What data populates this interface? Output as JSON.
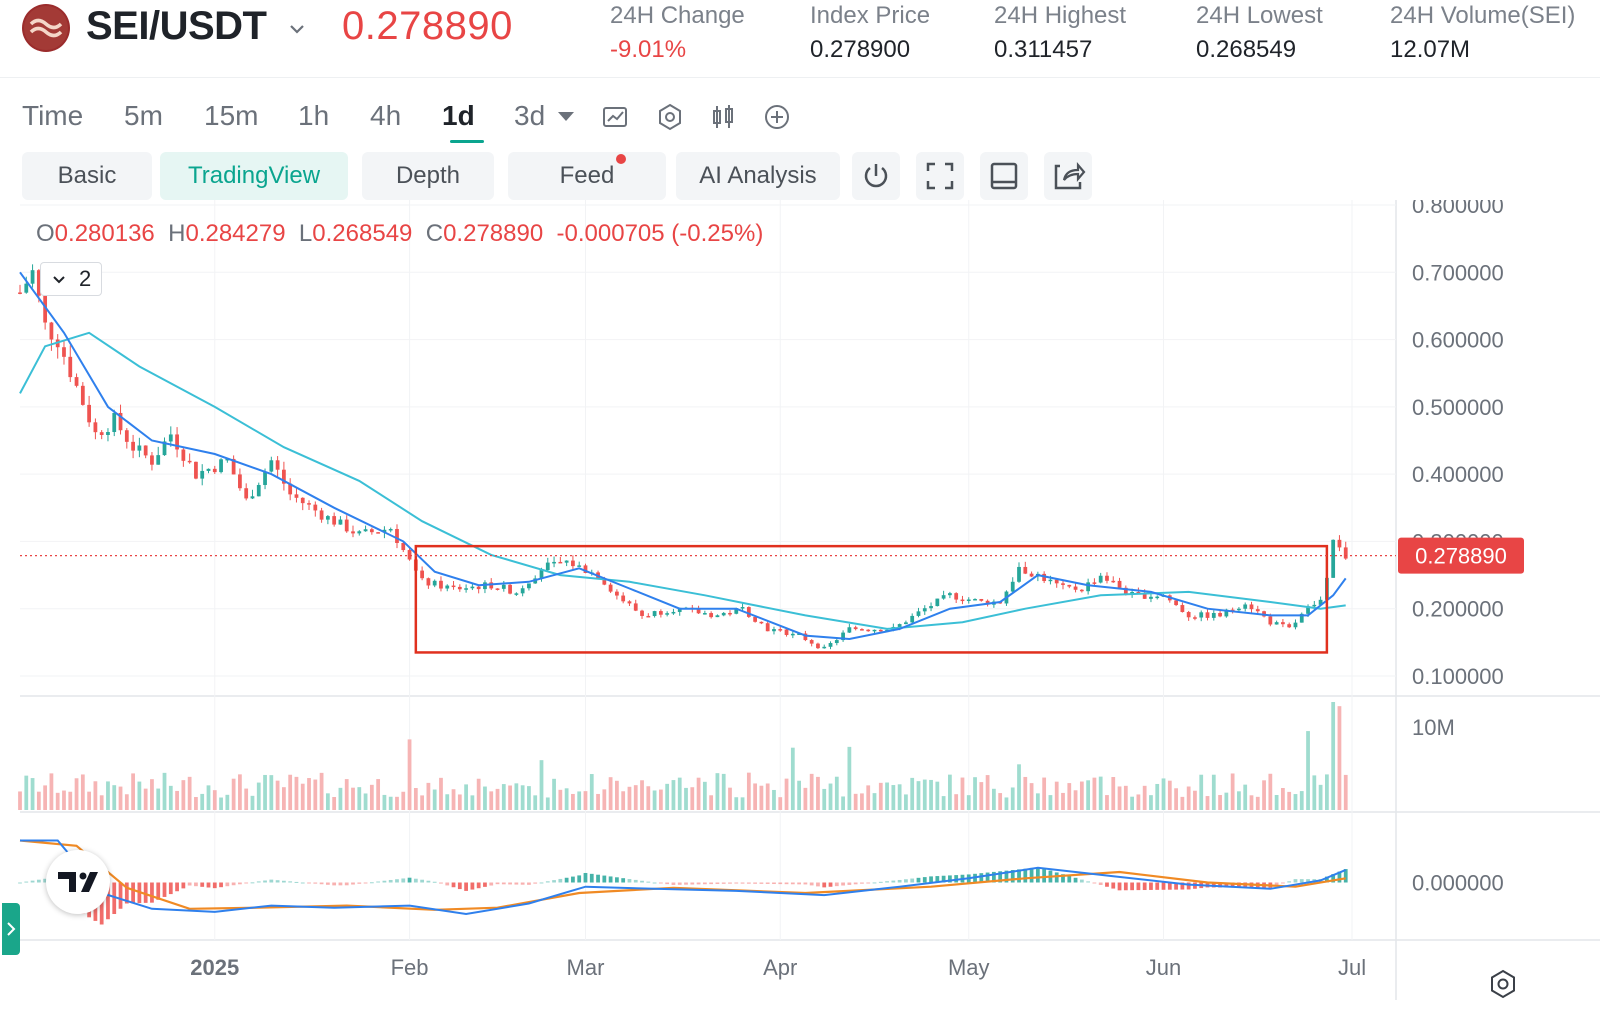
{
  "ticker": {
    "pair": "SEI/USDT",
    "last_price": "0.278890",
    "stats": [
      {
        "label": "24H Change",
        "value": "-9.01%",
        "negative": true
      },
      {
        "label": "Index Price",
        "value": "0.278900",
        "negative": false
      },
      {
        "label": "24H Highest",
        "value": "0.311457",
        "negative": false
      },
      {
        "label": "24H Lowest",
        "value": "0.268549",
        "negative": false
      },
      {
        "label": "24H Volume(SEI)",
        "value": "12.07M",
        "negative": false
      }
    ]
  },
  "timeframes": [
    "Time",
    "5m",
    "15m",
    "1h",
    "4h",
    "1d",
    "3d"
  ],
  "active_timeframe": "1d",
  "chart_tabs": [
    "Basic",
    "TradingView",
    "Depth",
    "Feed",
    "AI Analysis"
  ],
  "active_chart_tab": "TradingView",
  "ohlc": {
    "o_label": "O",
    "o": "0.280136",
    "h_label": "H",
    "h": "0.284279",
    "l_label": "L",
    "l": "0.268549",
    "c_label": "C",
    "c": "0.278890",
    "change": "-0.000705 (-0.25%)"
  },
  "indicator_count": "2",
  "colors": {
    "up": "#26a69a",
    "down": "#ef5350",
    "ma_fast": "#2f80ed",
    "ma_slow": "#3bbfd6",
    "macd": "#2f80ed",
    "signal": "#f08a24",
    "range_box": "#e0301e",
    "price_line": "#e84545"
  },
  "chart_data": {
    "type": "candlestick",
    "pair": "SEI/USDT",
    "interval": "1d",
    "y_ticks": [
      "0.800000",
      "0.700000",
      "0.600000",
      "0.500000",
      "0.400000",
      "0.300000",
      "0.200000",
      "0.100000"
    ],
    "ylim": [
      0.1,
      0.8
    ],
    "x_ticks": [
      "2025",
      "Feb",
      "Mar",
      "Apr",
      "May",
      "Jun",
      "Jul"
    ],
    "x_tick_dates": [
      "2025-01-01",
      "2025-02-01",
      "2025-03-01",
      "2025-04-01",
      "2025-05-01",
      "2025-06-01",
      "2025-07-01"
    ],
    "x_range": [
      "2024-12-01",
      "2025-07-08"
    ],
    "current_price_label": "0.278890",
    "current_price": 0.27889,
    "price_path": [
      [
        "2024-12-01",
        0.67
      ],
      [
        "2024-12-03",
        0.7
      ],
      [
        "2024-12-05",
        0.62
      ],
      [
        "2024-12-07",
        0.6
      ],
      [
        "2024-12-10",
        0.53
      ],
      [
        "2024-12-13",
        0.46
      ],
      [
        "2024-12-16",
        0.48
      ],
      [
        "2024-12-19",
        0.44
      ],
      [
        "2024-12-22",
        0.42
      ],
      [
        "2024-12-25",
        0.46
      ],
      [
        "2024-12-29",
        0.4
      ],
      [
        "2025-01-03",
        0.42
      ],
      [
        "2025-01-06",
        0.36
      ],
      [
        "2025-01-10",
        0.42
      ],
      [
        "2025-01-13",
        0.37
      ],
      [
        "2025-01-18",
        0.34
      ],
      [
        "2025-01-24",
        0.31
      ],
      [
        "2025-01-29",
        0.32
      ],
      [
        "2025-02-01",
        0.27
      ],
      [
        "2025-02-03",
        0.24
      ],
      [
        "2025-02-08",
        0.23
      ],
      [
        "2025-02-14",
        0.235
      ],
      [
        "2025-02-18",
        0.225
      ],
      [
        "2025-02-22",
        0.26
      ],
      [
        "2025-02-26",
        0.27
      ],
      [
        "2025-03-03",
        0.25
      ],
      [
        "2025-03-06",
        0.22
      ],
      [
        "2025-03-10",
        0.19
      ],
      [
        "2025-03-15",
        0.2
      ],
      [
        "2025-03-22",
        0.19
      ],
      [
        "2025-03-26",
        0.2
      ],
      [
        "2025-03-30",
        0.17
      ],
      [
        "2025-04-04",
        0.16
      ],
      [
        "2025-04-08",
        0.14
      ],
      [
        "2025-04-12",
        0.17
      ],
      [
        "2025-04-19",
        0.17
      ],
      [
        "2025-04-24",
        0.2
      ],
      [
        "2025-04-28",
        0.22
      ],
      [
        "2025-05-03",
        0.21
      ],
      [
        "2025-05-06",
        0.21
      ],
      [
        "2025-05-09",
        0.26
      ],
      [
        "2025-05-12",
        0.25
      ],
      [
        "2025-05-16",
        0.23
      ],
      [
        "2025-05-19",
        0.23
      ],
      [
        "2025-05-22",
        0.25
      ],
      [
        "2025-05-27",
        0.22
      ],
      [
        "2025-06-01",
        0.22
      ],
      [
        "2025-06-05",
        0.19
      ],
      [
        "2025-06-10",
        0.19
      ],
      [
        "2025-06-14",
        0.21
      ],
      [
        "2025-06-18",
        0.18
      ],
      [
        "2025-06-21",
        0.17
      ],
      [
        "2025-06-24",
        0.2
      ],
      [
        "2025-06-26",
        0.21
      ],
      [
        "2025-06-27",
        0.24
      ],
      [
        "2025-06-28",
        0.3
      ],
      [
        "2025-06-29",
        0.29
      ],
      [
        "2025-06-30",
        0.27889
      ]
    ],
    "ma_fast": [
      [
        "2024-12-01",
        0.7
      ],
      [
        "2024-12-08",
        0.61
      ],
      [
        "2024-12-15",
        0.5
      ],
      [
        "2024-12-22",
        0.45
      ],
      [
        "2025-01-01",
        0.43
      ],
      [
        "2025-01-10",
        0.4
      ],
      [
        "2025-01-20",
        0.35
      ],
      [
        "2025-01-31",
        0.3
      ],
      [
        "2025-02-05",
        0.255
      ],
      [
        "2025-02-12",
        0.235
      ],
      [
        "2025-02-20",
        0.24
      ],
      [
        "2025-02-28",
        0.26
      ],
      [
        "2025-03-08",
        0.23
      ],
      [
        "2025-03-16",
        0.2
      ],
      [
        "2025-03-25",
        0.2
      ],
      [
        "2025-04-05",
        0.16
      ],
      [
        "2025-04-12",
        0.155
      ],
      [
        "2025-04-20",
        0.17
      ],
      [
        "2025-04-28",
        0.2
      ],
      [
        "2025-05-06",
        0.21
      ],
      [
        "2025-05-12",
        0.25
      ],
      [
        "2025-05-20",
        0.235
      ],
      [
        "2025-05-30",
        0.225
      ],
      [
        "2025-06-08",
        0.2
      ],
      [
        "2025-06-18",
        0.19
      ],
      [
        "2025-06-24",
        0.19
      ],
      [
        "2025-06-28",
        0.22
      ],
      [
        "2025-06-30",
        0.245
      ]
    ],
    "ma_slow": [
      [
        "2024-12-01",
        0.52
      ],
      [
        "2024-12-05",
        0.59
      ],
      [
        "2024-12-12",
        0.61
      ],
      [
        "2024-12-20",
        0.56
      ],
      [
        "2025-01-01",
        0.5
      ],
      [
        "2025-01-12",
        0.44
      ],
      [
        "2025-01-24",
        0.39
      ],
      [
        "2025-02-03",
        0.33
      ],
      [
        "2025-02-14",
        0.28
      ],
      [
        "2025-02-25",
        0.25
      ],
      [
        "2025-03-08",
        0.24
      ],
      [
        "2025-03-20",
        0.22
      ],
      [
        "2025-04-05",
        0.19
      ],
      [
        "2025-04-18",
        0.17
      ],
      [
        "2025-04-30",
        0.18
      ],
      [
        "2025-05-10",
        0.2
      ],
      [
        "2025-05-22",
        0.22
      ],
      [
        "2025-06-05",
        0.225
      ],
      [
        "2025-06-18",
        0.21
      ],
      [
        "2025-06-26",
        0.2
      ],
      [
        "2025-06-30",
        0.205
      ]
    ],
    "range_box": {
      "from": "2025-02-02",
      "to": "2025-06-27",
      "low": 0.135,
      "high": 0.293
    },
    "volume_label": "10M",
    "volume_ylim": [
      0,
      13000000
    ],
    "volume_spikes": [
      [
        "2025-02-01",
        8500000
      ],
      [
        "2025-02-22",
        6000000
      ],
      [
        "2025-04-03",
        7500000
      ],
      [
        "2025-04-12",
        7600000
      ],
      [
        "2025-05-09",
        5500000
      ],
      [
        "2025-06-24",
        9500000
      ],
      [
        "2025-06-28",
        13000000
      ],
      [
        "2025-06-29",
        12500000
      ]
    ],
    "macd_label": "0.000000",
    "macd_ylim": [
      -0.05,
      0.05
    ],
    "macd": [
      [
        "2024-12-01",
        0.04
      ],
      [
        "2024-12-07",
        0.04
      ],
      [
        "2024-12-14",
        -0.01
      ],
      [
        "2024-12-22",
        -0.025
      ],
      [
        "2025-01-01",
        -0.028
      ],
      [
        "2025-01-10",
        -0.022
      ],
      [
        "2025-01-20",
        -0.024
      ],
      [
        "2025-02-01",
        -0.022
      ],
      [
        "2025-02-10",
        -0.03
      ],
      [
        "2025-02-20",
        -0.02
      ],
      [
        "2025-03-01",
        -0.004
      ],
      [
        "2025-03-12",
        -0.006
      ],
      [
        "2025-03-25",
        -0.008
      ],
      [
        "2025-04-08",
        -0.012
      ],
      [
        "2025-04-20",
        -0.004
      ],
      [
        "2025-05-01",
        0.004
      ],
      [
        "2025-05-12",
        0.014
      ],
      [
        "2025-05-24",
        0.006
      ],
      [
        "2025-06-05",
        -0.002
      ],
      [
        "2025-06-18",
        -0.006
      ],
      [
        "2025-06-26",
        0.002
      ],
      [
        "2025-06-30",
        0.012
      ]
    ],
    "signal": [
      [
        "2024-12-01",
        0.04
      ],
      [
        "2024-12-10",
        0.035
      ],
      [
        "2024-12-18",
        -0.005
      ],
      [
        "2024-12-28",
        -0.025
      ],
      [
        "2025-01-08",
        -0.024
      ],
      [
        "2025-01-22",
        -0.022
      ],
      [
        "2025-02-05",
        -0.026
      ],
      [
        "2025-02-15",
        -0.024
      ],
      [
        "2025-02-28",
        -0.01
      ],
      [
        "2025-03-15",
        -0.005
      ],
      [
        "2025-04-05",
        -0.01
      ],
      [
        "2025-04-25",
        -0.004
      ],
      [
        "2025-05-10",
        0.004
      ],
      [
        "2025-05-25",
        0.01
      ],
      [
        "2025-06-08",
        0.0
      ],
      [
        "2025-06-22",
        -0.004
      ],
      [
        "2025-06-30",
        0.004
      ]
    ]
  }
}
